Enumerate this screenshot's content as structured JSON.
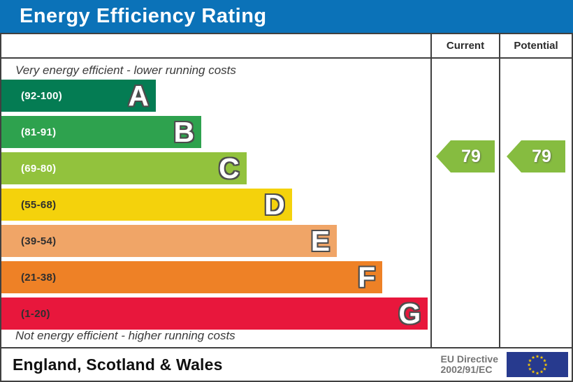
{
  "title": "Energy Efficiency Rating",
  "colors": {
    "title_bar": "#0B72B8",
    "border": "#404040",
    "arrow_green": "#86BC40"
  },
  "header": {
    "current": "Current",
    "potential": "Potential"
  },
  "notes": {
    "top": "Very energy efficient - lower running costs",
    "bottom": "Not energy efficient - higher running costs"
  },
  "bands": [
    {
      "letter": "A",
      "range": "(92-100)",
      "color": "#047C53",
      "text_color": "#ffffff",
      "width_pct": 36.0
    },
    {
      "letter": "B",
      "range": "(81-91)",
      "color": "#2EA24E",
      "text_color": "#ffffff",
      "width_pct": 46.6
    },
    {
      "letter": "C",
      "range": "(69-80)",
      "color": "#92C23D",
      "text_color": "#ffffff",
      "width_pct": 57.1
    },
    {
      "letter": "D",
      "range": "(55-68)",
      "color": "#F4D20C",
      "text_color": "#2f2f2f",
      "width_pct": 67.7
    },
    {
      "letter": "E",
      "range": "(39-54)",
      "color": "#F0A567",
      "text_color": "#2f2f2f",
      "width_pct": 78.2
    },
    {
      "letter": "F",
      "range": "(21-38)",
      "color": "#EE8126",
      "text_color": "#2f2f2f",
      "width_pct": 88.8
    },
    {
      "letter": "G",
      "range": "(1-20)",
      "color": "#E8173C",
      "text_color": "#2f2f2f",
      "width_pct": 99.4
    }
  ],
  "ratings": {
    "current": {
      "value": "79",
      "band": "C",
      "color": "#86BC40"
    },
    "potential": {
      "value": "79",
      "band": "C",
      "color": "#86BC40"
    }
  },
  "footer": {
    "region": "England, Scotland & Wales",
    "directive": {
      "line1": "EU Directive",
      "line2": "2002/91/EC"
    },
    "eu_flag": {
      "background": "#273A8E",
      "star_color": "#FFCC00"
    }
  },
  "chart_data": {
    "type": "bar",
    "title": "Energy Efficiency Rating",
    "categories": [
      "A",
      "B",
      "C",
      "D",
      "E",
      "F",
      "G"
    ],
    "band_ranges": [
      [
        92,
        100
      ],
      [
        81,
        91
      ],
      [
        69,
        80
      ],
      [
        55,
        68
      ],
      [
        39,
        54
      ],
      [
        21,
        38
      ],
      [
        1,
        20
      ]
    ],
    "band_labels": [
      "(92-100)",
      "(81-91)",
      "(69-80)",
      "(55-68)",
      "(39-54)",
      "(21-38)",
      "(1-20)"
    ],
    "band_colors": [
      "#047C53",
      "#2EA24E",
      "#92C23D",
      "#F4D20C",
      "#F0A567",
      "#EE8126",
      "#E8173C"
    ],
    "bar_widths_pct": [
      36.0,
      46.6,
      57.1,
      67.7,
      78.2,
      88.8,
      99.4
    ],
    "series": [
      {
        "name": "Current",
        "values": [
          79
        ]
      },
      {
        "name": "Potential",
        "values": [
          79
        ]
      }
    ],
    "current_rating": 79,
    "potential_rating": 79,
    "current_band": "C",
    "potential_band": "C",
    "scale_range": [
      1,
      100
    ],
    "legend_position": "top-right-columns",
    "annotations": [
      "Very energy efficient - lower running costs",
      "Not energy efficient - higher running costs",
      "England, Scotland & Wales",
      "EU Directive 2002/91/EC"
    ]
  }
}
